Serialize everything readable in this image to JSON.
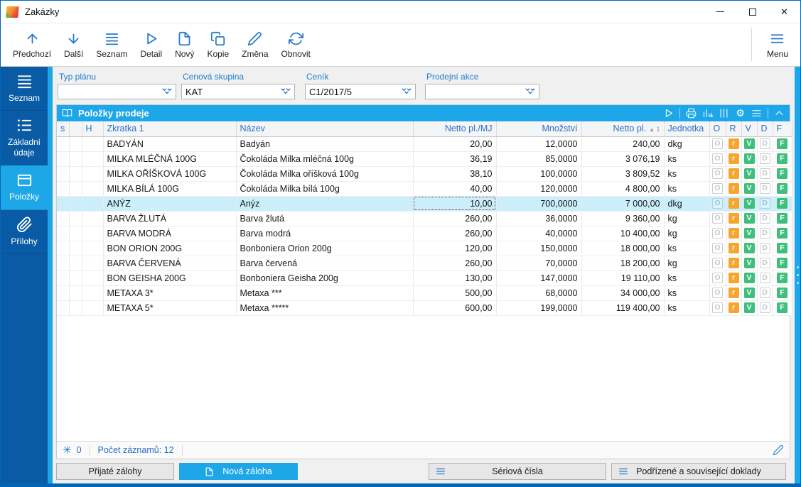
{
  "window": {
    "title": "Zakázky",
    "controls": [
      {
        "name": "minimize"
      },
      {
        "name": "maximize"
      },
      {
        "name": "close",
        "glyph": "✕"
      }
    ]
  },
  "toolbar": {
    "buttons": [
      {
        "label": "Předchozí",
        "icon": "arrow-up-icon"
      },
      {
        "label": "Další",
        "icon": "arrow-down-icon"
      },
      {
        "label": "Seznam",
        "icon": "list-icon"
      },
      {
        "label": "Detail",
        "icon": "play-icon"
      },
      {
        "label": "Nový",
        "icon": "new-file-icon"
      },
      {
        "label": "Kopie",
        "icon": "copy-icon"
      },
      {
        "label": "Změna",
        "icon": "pencil-icon"
      },
      {
        "label": "Obnovit",
        "icon": "refresh-icon"
      }
    ],
    "menu": {
      "label": "Menu",
      "icon": "menu-icon"
    }
  },
  "sidebar": {
    "items": [
      {
        "label": "Seznam",
        "icon": "list-icon",
        "selected": false
      },
      {
        "label": "Základní údaje",
        "icon": "list-detail-icon",
        "selected": false
      },
      {
        "label": "Položky",
        "icon": "items-box-icon",
        "selected": true
      },
      {
        "label": "Přílohy",
        "icon": "paperclip-icon",
        "selected": false
      }
    ]
  },
  "filters": [
    {
      "label": "Typ plánu",
      "value": ""
    },
    {
      "label": "Cenová skupina",
      "value": "KAT"
    },
    {
      "label": "Ceník",
      "value": "C1/2017/5"
    },
    {
      "label": "Prodejní akce",
      "value": ""
    }
  ],
  "panel": {
    "title": "Položky prodeje",
    "icon": "open-book-icon",
    "toolbar_icons": [
      "play-icon",
      "printer-icon",
      "chart-icon",
      "columns-icon",
      "settings-icon",
      "menu-icon",
      "collapse-icon"
    ]
  },
  "grid": {
    "columns": [
      "s",
      "",
      "H",
      "Zkratka 1",
      "Název",
      "Netto pl./MJ",
      "Množství",
      "Netto pl.",
      "Jednotka",
      "O",
      "R",
      "V",
      "D",
      "F"
    ],
    "sort": {
      "column": "Netto pl.",
      "direction": "asc",
      "order": "1"
    },
    "badge_states": [
      {
        "letter": "O",
        "state": "inactive"
      },
      {
        "letter": "r",
        "state": "orange"
      },
      {
        "letter": "V",
        "state": "green"
      },
      {
        "letter": "D",
        "state": "inactive"
      },
      {
        "letter": "F",
        "state": "green"
      }
    ],
    "selected_row": 4,
    "rows": [
      {
        "zkratka1": "BADYÁN",
        "nazev": "Badyán",
        "netto_mj": "20,00",
        "mnozstvi": "12,0000",
        "netto": "240,00",
        "jednotka": "dkg"
      },
      {
        "zkratka1": "MILKA MLÉČNÁ 100G",
        "nazev": "Čokoláda Milka mléčná 100g",
        "netto_mj": "36,19",
        "mnozstvi": "85,0000",
        "netto": "3 076,19",
        "jednotka": "ks"
      },
      {
        "zkratka1": "MILKA OŘÍŠKOVÁ 100G",
        "nazev": "Čokoláda Milka oříšková 100g",
        "netto_mj": "38,10",
        "mnozstvi": "100,0000",
        "netto": "3 809,52",
        "jednotka": "ks"
      },
      {
        "zkratka1": "MILKA BÍLÁ 100G",
        "nazev": "Čokoláda Milka bílá 100g",
        "netto_mj": "40,00",
        "mnozstvi": "120,0000",
        "netto": "4 800,00",
        "jednotka": "ks"
      },
      {
        "zkratka1": "ANÝZ",
        "nazev": "Anýz",
        "netto_mj": "10,00",
        "mnozstvi": "700,0000",
        "netto": "7 000,00",
        "jednotka": "dkg"
      },
      {
        "zkratka1": "BARVA ŽLUTÁ",
        "nazev": "Barva žlutá",
        "netto_mj": "260,00",
        "mnozstvi": "36,0000",
        "netto": "9 360,00",
        "jednotka": "kg"
      },
      {
        "zkratka1": "BARVA MODRÁ",
        "nazev": "Barva modrá",
        "netto_mj": "260,00",
        "mnozstvi": "40,0000",
        "netto": "10 400,00",
        "jednotka": "kg"
      },
      {
        "zkratka1": "BON ORION 200G",
        "nazev": "Bonboniera Orion 200g",
        "netto_mj": "120,00",
        "mnozstvi": "150,0000",
        "netto": "18 000,00",
        "jednotka": "ks"
      },
      {
        "zkratka1": "BARVA ČERVENÁ",
        "nazev": "Barva červená",
        "netto_mj": "260,00",
        "mnozstvi": "70,0000",
        "netto": "18 200,00",
        "jednotka": "kg"
      },
      {
        "zkratka1": "BON GEISHA 200G",
        "nazev": "Bonboniera Geisha 200g",
        "netto_mj": "130,00",
        "mnozstvi": "147,0000",
        "netto": "19 110,00",
        "jednotka": "ks"
      },
      {
        "zkratka1": "METAXA 3*",
        "nazev": "Metaxa ***",
        "netto_mj": "500,00",
        "mnozstvi": "68,0000",
        "netto": "34 000,00",
        "jednotka": "ks"
      },
      {
        "zkratka1": "METAXA 5*",
        "nazev": "Metaxa *****",
        "netto_mj": "600,00",
        "mnozstvi": "199,0000",
        "netto": "119 400,00",
        "jednotka": "ks"
      }
    ]
  },
  "status": {
    "frozen_icon": "snowflake-icon",
    "frozen_count": "0",
    "records": "Počet záznamů: 12",
    "edit_icon": "pencil-icon"
  },
  "footer": {
    "buttons": [
      {
        "label": "Přijaté zálohy",
        "style": "default",
        "icon": ""
      },
      {
        "label": "Nová záloha",
        "style": "primary",
        "icon": "new-file-icon"
      },
      {
        "label": "Sériová čísla",
        "style": "default",
        "icon": "menu-icon"
      },
      {
        "label": "Podřízené a související doklady",
        "style": "default",
        "icon": "menu-icon"
      }
    ]
  },
  "colors": {
    "accent_cyan": "#1ea7e8",
    "sidebar_blue": "#0a5ba6",
    "icon_blue": "#2778c8",
    "badge_orange": "#f6a52d",
    "badge_green": "#3fbf7d",
    "selected_row": "#cceefb",
    "window_border": "#0067b6"
  }
}
